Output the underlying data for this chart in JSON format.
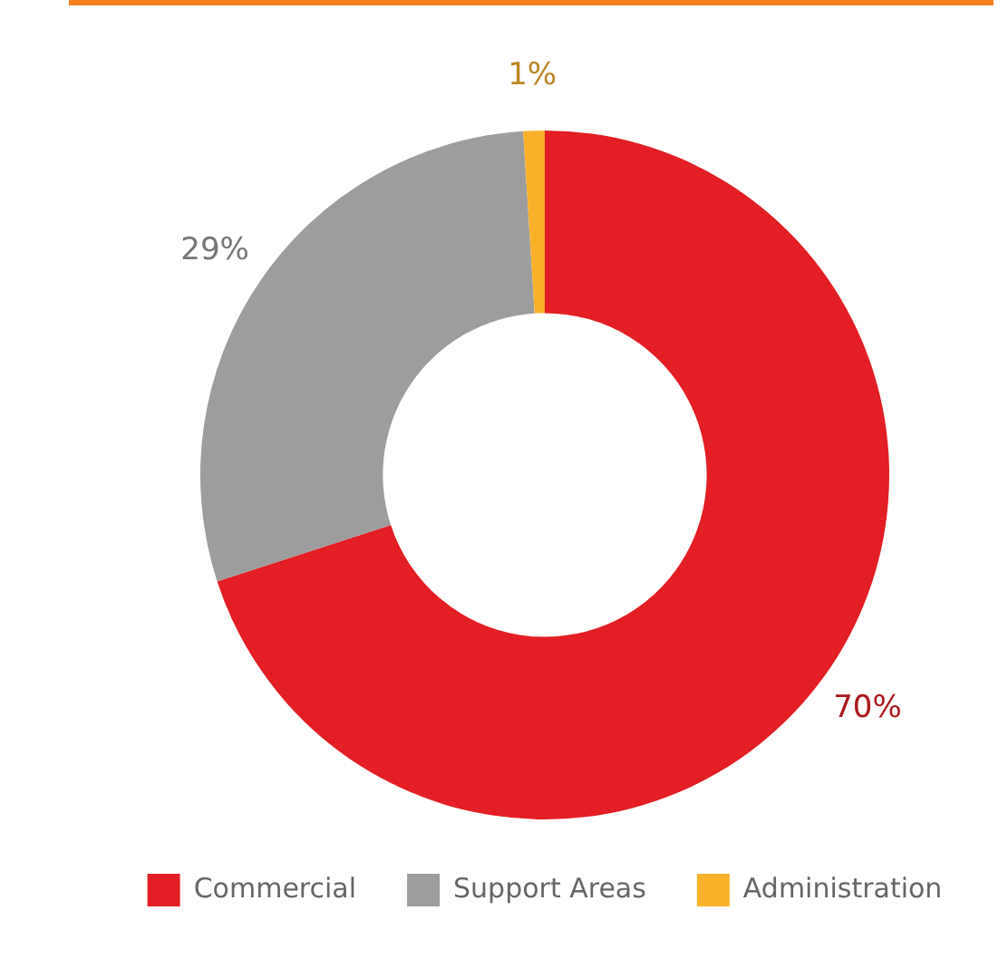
{
  "chart_data": {
    "type": "donut",
    "categories": [
      "Commercial",
      "Support Areas",
      "Administration"
    ],
    "values": [
      70,
      29,
      1
    ],
    "colors": [
      "#e31e24",
      "#9d9d9d",
      "#f9b12a"
    ],
    "value_labels": [
      "70%",
      "29%",
      "1%"
    ],
    "legend": "bottom"
  }
}
